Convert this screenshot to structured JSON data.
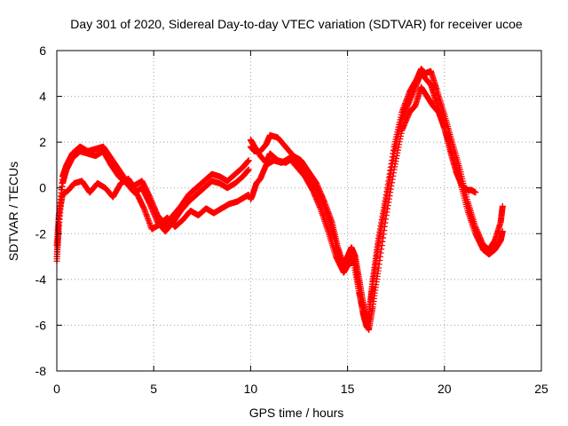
{
  "chart_data": {
    "type": "scatter",
    "title": "Day 301 of 2020, Sidereal Day-to-day VTEC variation (SDTVAR) for receiver ucoe",
    "xlabel": "GPS time / hours",
    "ylabel": "SDTVAR / TECUs",
    "xlim": [
      0,
      25
    ],
    "ylim": [
      -8,
      6
    ],
    "x_ticks": [
      "0",
      "5",
      "10",
      "15",
      "20",
      "25"
    ],
    "y_ticks": [
      "-8",
      "-6",
      "-4",
      "-2",
      "0",
      "2",
      "4",
      "6"
    ],
    "grid": true,
    "marker": "plus",
    "color": "#ff0000",
    "series": [
      {
        "x": [
          0.0,
          0.1,
          0.3,
          0.5,
          0.8,
          1.2,
          1.6,
          2.0,
          2.4,
          2.8,
          3.2,
          3.6,
          4.0,
          4.4,
          4.8,
          5.2,
          5.6,
          6.0,
          6.4,
          6.8,
          7.2,
          7.6,
          8.0,
          8.4,
          8.8,
          9.2,
          9.6,
          9.9
        ],
        "y": [
          -3.0,
          -1.5,
          0.5,
          1.0,
          1.5,
          1.8,
          1.6,
          1.7,
          1.8,
          1.3,
          0.8,
          0.3,
          0.1,
          0.3,
          -0.4,
          -1.2,
          -1.6,
          -1.2,
          -0.8,
          -0.3,
          0.0,
          0.3,
          0.6,
          0.5,
          0.3,
          0.6,
          0.9,
          1.2
        ]
      },
      {
        "x": [
          0.0,
          0.1,
          0.3,
          0.5,
          0.8,
          1.2,
          1.6,
          2.0,
          2.4,
          2.8,
          3.2,
          3.6,
          4.0,
          4.4,
          4.8,
          5.2,
          5.6,
          6.0,
          6.4,
          6.8,
          7.2,
          7.6,
          8.0,
          8.4,
          8.8,
          9.2,
          9.6,
          9.9
        ],
        "y": [
          -3.2,
          -1.8,
          0.2,
          0.8,
          1.3,
          1.6,
          1.5,
          1.4,
          1.6,
          1.0,
          0.5,
          0.2,
          -0.2,
          0.0,
          -0.7,
          -1.5,
          -1.9,
          -1.5,
          -1.0,
          -0.6,
          -0.3,
          0.0,
          0.3,
          0.2,
          0.0,
          0.2,
          0.5,
          0.8
        ]
      },
      {
        "x": [
          0.0,
          0.1,
          0.3,
          0.6,
          0.9,
          1.3,
          1.7,
          2.1,
          2.5,
          2.9,
          3.3,
          3.7,
          4.1,
          4.5,
          4.9,
          5.3,
          5.7,
          6.1,
          6.5,
          6.9,
          7.3,
          7.7,
          8.1,
          8.5,
          8.9,
          9.3,
          9.7,
          9.9
        ],
        "y": [
          -2.5,
          -1.2,
          -0.3,
          -0.1,
          0.2,
          0.3,
          -0.2,
          0.2,
          0.0,
          -0.4,
          0.2,
          0.4,
          -0.2,
          -0.9,
          -1.8,
          -1.6,
          -1.3,
          -1.7,
          -1.4,
          -1.0,
          -1.2,
          -0.9,
          -1.1,
          -0.9,
          -0.7,
          -0.6,
          -0.4,
          -0.3
        ]
      },
      {
        "x": [
          10.0,
          10.2,
          10.5,
          10.8,
          11.0,
          11.4,
          11.8,
          12.2,
          12.6,
          13.0,
          13.4,
          13.8,
          14.2,
          14.5,
          14.8,
          15.0,
          15.2,
          15.4,
          15.6,
          15.8,
          16.0,
          16.1,
          16.3,
          16.6,
          17.0,
          17.4,
          17.8,
          18.2,
          18.6,
          18.8,
          19.0,
          19.3,
          19.6,
          20.0,
          20.4,
          20.8,
          21.2,
          21.6,
          22.0,
          22.3,
          22.6,
          22.9,
          23.0
        ],
        "y": [
          2.1,
          1.8,
          1.4,
          1.1,
          1.5,
          1.2,
          1.1,
          1.3,
          1.0,
          0.6,
          0.0,
          -0.8,
          -1.8,
          -2.8,
          -3.5,
          -3.3,
          -2.8,
          -3.2,
          -4.5,
          -5.5,
          -6.1,
          -5.6,
          -4.2,
          -2.4,
          -0.5,
          1.5,
          3.0,
          3.8,
          4.6,
          5.1,
          4.8,
          4.5,
          3.7,
          2.6,
          1.5,
          0.3,
          -1.0,
          -2.0,
          -2.7,
          -2.9,
          -2.7,
          -2.3,
          -1.9
        ]
      },
      {
        "x": [
          10.0,
          10.2,
          10.5,
          10.8,
          11.0,
          11.4,
          11.8,
          12.2,
          12.6,
          13.0,
          13.4,
          13.8,
          14.2,
          14.5,
          14.8,
          15.0,
          15.2,
          15.4,
          15.6,
          15.8,
          16.0,
          16.1,
          16.3,
          16.6,
          17.0,
          17.4,
          17.8,
          18.2,
          18.6,
          18.8,
          19.0,
          19.3,
          19.6,
          20.0,
          20.4,
          20.8,
          21.2,
          21.6,
          22.0,
          22.3,
          22.6,
          22.9,
          23.0
        ],
        "y": [
          1.8,
          1.6,
          1.6,
          1.9,
          2.3,
          2.2,
          1.8,
          1.4,
          1.2,
          0.7,
          0.2,
          -0.6,
          -1.5,
          -2.6,
          -3.4,
          -3.0,
          -2.6,
          -3.0,
          -4.0,
          -5.0,
          -5.8,
          -5.5,
          -4.0,
          -2.2,
          -0.3,
          1.8,
          3.3,
          4.2,
          4.8,
          5.2,
          5.0,
          5.1,
          4.3,
          3.2,
          2.0,
          0.8,
          -0.6,
          -1.7,
          -2.5,
          -2.7,
          -2.3,
          -1.5,
          -0.8
        ]
      },
      {
        "x": [
          10.0,
          10.1,
          10.3,
          10.5,
          10.8,
          11.2,
          11.6,
          12.0,
          12.4,
          12.8,
          13.2,
          13.6,
          14.0,
          14.4,
          14.8,
          15.0,
          15.3,
          15.6,
          15.9,
          16.1,
          16.3,
          16.6,
          17.0,
          17.4,
          17.8,
          18.2,
          18.5,
          18.8,
          19.1,
          19.4,
          19.7,
          20.0,
          20.3,
          20.6,
          20.9,
          21.2,
          21.4,
          21.6
        ],
        "y": [
          -0.5,
          -0.3,
          0.2,
          0.4,
          1.0,
          1.2,
          1.1,
          1.3,
          0.9,
          0.5,
          -0.1,
          -0.9,
          -1.9,
          -3.0,
          -3.7,
          -3.4,
          -3.2,
          -4.6,
          -5.8,
          -6.2,
          -5.2,
          -3.5,
          -1.2,
          0.8,
          2.5,
          3.3,
          3.6,
          4.4,
          4.0,
          3.6,
          3.3,
          2.6,
          1.6,
          0.7,
          0.1,
          -0.1,
          -0.1,
          -0.2
        ]
      }
    ]
  }
}
